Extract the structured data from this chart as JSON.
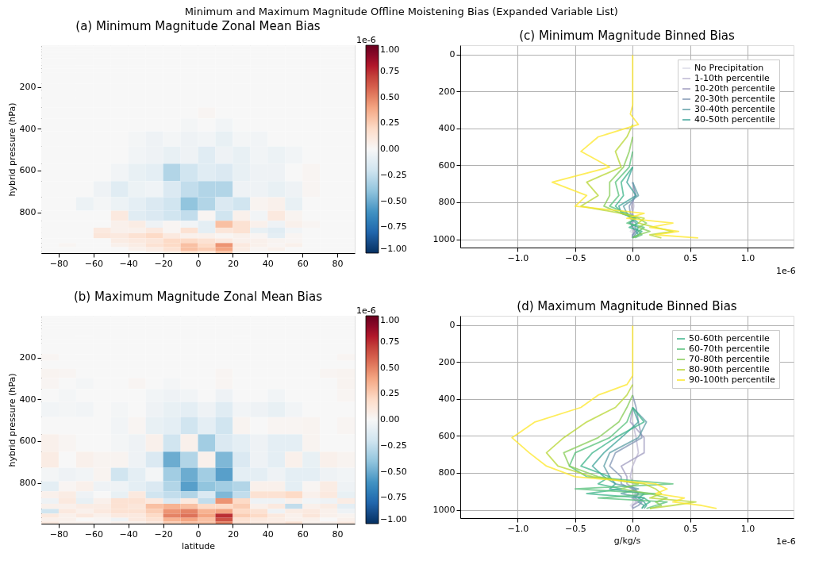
{
  "chart_data": [
    {
      "type": "other",
      "title": "Minimum and Maximum Magnitude Offline Moistening Bias (Expanded Variable List)"
    },
    {
      "type": "heatmap",
      "title": "(a) Minimum Magnitude Zonal Mean Bias",
      "ylabel": "hybrid pressure (hPa)",
      "annotations": [
        "1e-6"
      ],
      "x": [
        -85,
        -75,
        -65,
        -55,
        -45,
        -35,
        -25,
        -15,
        -5,
        5,
        15,
        25,
        35,
        45,
        55,
        65,
        75,
        85
      ],
      "y": [
        3.64,
        7.59,
        14.36,
        24.61,
        38.27,
        54.6,
        72.01,
        87.82,
        103.32,
        121.55,
        142.99,
        168.23,
        197.91,
        232.83,
        273.91,
        322.24,
        379.1,
        445.99,
        524.69,
        609.78,
        691.39,
        763.4,
        820.86,
        859.53,
        887.02,
        912.64,
        936.2,
        957.49,
        976.33,
        992.56
      ],
      "xlim": [
        -90,
        90
      ],
      "xticks": [
        {
          "value": -80,
          "label": "−80"
        },
        {
          "value": -60,
          "label": "−60"
        },
        {
          "value": -40,
          "label": "−40"
        },
        {
          "value": -20,
          "label": "−20"
        },
        0,
        20,
        40,
        60,
        80
      ],
      "ylim": [
        995,
        0
      ],
      "yticks": [
        200,
        400,
        600,
        800
      ],
      "clim": [
        -1,
        1
      ],
      "cticks": [
        {
          "value": -1,
          "label": "−1.00"
        },
        {
          "value": -0.75,
          "label": "−0.75"
        },
        {
          "value": -0.5,
          "label": "−0.50"
        },
        {
          "value": -0.25,
          "label": "−0.25"
        },
        {
          "value": 0,
          "label": "0.00"
        },
        {
          "value": 0.25,
          "label": "0.25"
        },
        {
          "value": 0.5,
          "label": "0.50"
        },
        {
          "value": 0.75,
          "label": "0.75"
        },
        {
          "value": 1,
          "label": "1.00"
        }
      ],
      "cells": [
        [
          0,
          0,
          0,
          0,
          0,
          0,
          0,
          0,
          0,
          0,
          0,
          0,
          0,
          0,
          0,
          0,
          0,
          0
        ],
        [
          0,
          0,
          0,
          0,
          0,
          0,
          0,
          0,
          0,
          0,
          0,
          0,
          0,
          0,
          0,
          0,
          0,
          0
        ],
        [
          0,
          0,
          0,
          0,
          0,
          0,
          0,
          0,
          0,
          0,
          0,
          0,
          0,
          0,
          0,
          0,
          0,
          0
        ],
        [
          0,
          0,
          0,
          0,
          0,
          0,
          0,
          0,
          0,
          0,
          0,
          0,
          0,
          0,
          0,
          0,
          0,
          0
        ],
        [
          0,
          0,
          0,
          0,
          0,
          0,
          0,
          0,
          0,
          0,
          0,
          0,
          0,
          0,
          0,
          0,
          0,
          0
        ],
        [
          0,
          0,
          0,
          0,
          0,
          0,
          0,
          0,
          0,
          0,
          0,
          0,
          0,
          0,
          0,
          0,
          0,
          0
        ],
        [
          0,
          0,
          0,
          0,
          0,
          0,
          0,
          0,
          0,
          0,
          0,
          0,
          0,
          0,
          0,
          0,
          0,
          0
        ],
        [
          0,
          0,
          0,
          0,
          0,
          0,
          0,
          0,
          0,
          0,
          0,
          0,
          0,
          0,
          0,
          0,
          0,
          0
        ],
        [
          0,
          0,
          0,
          0,
          0,
          0,
          0,
          0,
          0,
          0,
          0,
          0,
          0,
          0,
          0,
          0,
          0,
          0
        ],
        [
          0,
          0,
          0,
          0,
          0,
          0,
          0,
          0,
          0,
          0,
          0,
          0,
          0,
          0,
          0,
          0,
          0,
          0
        ],
        [
          0,
          0,
          0,
          0,
          0,
          0,
          0,
          0,
          0,
          0,
          0,
          0,
          0,
          0,
          0,
          0,
          0,
          0
        ],
        [
          0,
          0,
          0,
          0,
          0,
          0,
          0,
          0,
          0,
          0,
          0,
          0,
          0,
          0,
          0,
          0,
          0,
          0
        ],
        [
          0,
          0,
          0,
          0,
          0,
          0,
          0,
          0,
          0,
          0,
          0,
          0,
          0,
          0,
          0,
          0,
          0,
          0
        ],
        [
          0,
          0,
          0,
          0,
          0,
          0,
          0,
          0,
          0,
          0,
          0,
          0,
          0,
          0,
          0,
          0,
          0,
          0
        ],
        [
          0,
          0,
          0,
          0,
          0,
          0,
          0,
          0,
          0,
          0,
          0,
          0,
          0,
          0,
          0,
          0,
          0,
          0
        ],
        [
          0,
          0,
          0,
          0,
          0,
          0,
          0,
          0,
          0,
          0.02,
          0,
          0,
          0,
          0,
          0,
          0,
          0,
          0
        ],
        [
          0,
          0,
          0,
          0,
          0,
          0,
          0,
          0,
          -0.02,
          0,
          -0.03,
          0,
          0,
          0,
          0,
          0,
          0,
          0
        ],
        [
          0,
          0,
          0,
          0,
          0,
          -0.02,
          -0.05,
          -0.02,
          -0.05,
          -0.03,
          -0.08,
          -0.02,
          -0.03,
          0,
          0,
          0,
          0,
          0
        ],
        [
          0,
          0,
          0,
          0,
          0,
          -0.03,
          -0.05,
          -0.08,
          -0.05,
          -0.12,
          -0.05,
          -0.08,
          -0.03,
          -0.06,
          -0.03,
          0,
          0,
          0
        ],
        [
          0,
          0,
          0,
          0,
          -0.03,
          -0.08,
          -0.1,
          -0.3,
          -0.2,
          -0.12,
          -0.15,
          -0.08,
          -0.05,
          -0.05,
          0,
          0.02,
          0,
          0
        ],
        [
          0,
          0,
          0,
          -0.05,
          -0.12,
          -0.06,
          -0.04,
          -0.15,
          -0.25,
          -0.3,
          -0.3,
          -0.05,
          -0.05,
          -0.08,
          -0.05,
          0.02,
          0,
          0
        ],
        [
          0,
          0,
          -0.06,
          -0.02,
          -0.06,
          -0.1,
          -0.15,
          -0.2,
          -0.4,
          -0.3,
          -0.15,
          -0.2,
          0.03,
          0.05,
          -0.08,
          0,
          0,
          0
        ],
        [
          0,
          0,
          0,
          0,
          0.1,
          -0.12,
          -0.15,
          -0.2,
          -0.25,
          0.02,
          -0.2,
          0.05,
          -0.03,
          0.1,
          0.03,
          0,
          0,
          0
        ],
        [
          0,
          0,
          0,
          0,
          0.05,
          0.08,
          -0.05,
          0.02,
          -0.03,
          -0.1,
          0.3,
          0.15,
          0.05,
          -0.05,
          0.05,
          0.02,
          0,
          0
        ],
        [
          0,
          0,
          0,
          0.1,
          0.05,
          0.05,
          0.1,
          0.02,
          0.15,
          -0.1,
          0.12,
          0.15,
          -0.08,
          -0.12,
          -0.03,
          0,
          0,
          0
        ],
        [
          0,
          0,
          0,
          0.12,
          0.1,
          0.15,
          0.2,
          0.1,
          0.05,
          0.05,
          0.02,
          0.05,
          0.02,
          -0.1,
          0.02,
          0,
          0,
          0
        ],
        [
          0,
          0,
          0,
          0,
          0.08,
          0.1,
          0.12,
          0.2,
          0.2,
          0.15,
          0.1,
          0.05,
          0.05,
          0.03,
          0.02,
          0,
          0,
          0
        ],
        [
          0,
          0.02,
          0,
          0,
          0.05,
          0.08,
          0.15,
          0.2,
          0.3,
          0.2,
          0.45,
          0.1,
          0.05,
          0.02,
          0.05,
          0,
          0,
          0
        ],
        [
          0,
          0,
          0,
          0,
          0,
          0.05,
          0.08,
          0.15,
          0.3,
          0.25,
          0.4,
          0.08,
          0.02,
          0.05,
          0,
          0,
          0,
          0
        ],
        [
          0,
          0,
          0,
          0,
          0,
          0,
          0.05,
          0.1,
          0.2,
          0.15,
          0.3,
          0.05,
          0,
          0,
          0,
          0,
          0,
          0
        ]
      ]
    },
    {
      "type": "line",
      "orientation": "horizontal",
      "title": "(c) Minimum Magnitude Binned Bias",
      "annotations": [
        "1e-6"
      ],
      "grid": true,
      "legend": "top right",
      "x": [
        3.64,
        7.59,
        14.36,
        24.61,
        38.27,
        54.6,
        72.01,
        87.82,
        103.32,
        121.55,
        142.99,
        168.23,
        197.91,
        232.83,
        273.91,
        322.24,
        379.1,
        445.99,
        524.69,
        609.78,
        691.39,
        763.4,
        820.86,
        859.53,
        887.02,
        912.64,
        936.2,
        957.49,
        976.33,
        992.56
      ],
      "xlim": [
        -1.5,
        1.4
      ],
      "xticks": [
        {
          "value": -1,
          "label": "−1.0"
        },
        {
          "value": -0.5,
          "label": "−0.5"
        },
        {
          "value": 0,
          "label": "0.0"
        },
        {
          "value": 0.5,
          "label": "0.5"
        },
        {
          "value": 1,
          "label": "1.0"
        }
      ],
      "ylim": [
        1045,
        -50
      ],
      "yticks": [
        0,
        200,
        400,
        600,
        800,
        1000
      ],
      "series": [
        {
          "name": "No Precipitation",
          "color": "#dcdce8",
          "values": [
            null,
            null,
            null,
            null,
            null,
            null,
            null,
            null,
            null,
            null,
            null,
            null,
            null,
            null,
            null,
            null,
            null,
            null,
            null,
            null,
            null,
            null,
            null,
            null,
            null,
            -0.01,
            0.01,
            -0.02,
            0.02,
            -0.01
          ]
        },
        {
          "name": "1-10th percentile",
          "color": "#bdb8d2",
          "values": [
            null,
            null,
            null,
            null,
            null,
            null,
            null,
            null,
            null,
            null,
            null,
            null,
            null,
            null,
            null,
            null,
            null,
            null,
            null,
            null,
            null,
            0,
            0.01,
            0,
            0,
            0,
            0,
            0.01,
            0,
            0
          ]
        },
        {
          "name": "10-20th percentile",
          "color": "#a09cc0",
          "values": [
            null,
            null,
            null,
            null,
            null,
            null,
            null,
            null,
            null,
            null,
            null,
            null,
            null,
            null,
            null,
            null,
            null,
            null,
            null,
            null,
            0,
            0.02,
            -0.01,
            0,
            0.01,
            0,
            0,
            0.02,
            0,
            0
          ]
        },
        {
          "name": "20-30th percentile",
          "color": "#8196b4",
          "values": [
            null,
            null,
            null,
            null,
            null,
            null,
            null,
            null,
            null,
            null,
            null,
            null,
            null,
            null,
            null,
            null,
            null,
            null,
            null,
            null,
            0,
            0.03,
            -0.03,
            -0.02,
            0.02,
            -0.02,
            0,
            0.03,
            0,
            0
          ]
        },
        {
          "name": "30-40th percentile",
          "color": "#5e9ea6",
          "values": [
            null,
            null,
            null,
            null,
            null,
            null,
            null,
            null,
            null,
            null,
            null,
            null,
            null,
            null,
            null,
            null,
            null,
            null,
            null,
            null,
            0,
            0.05,
            -0.08,
            -0.05,
            -0.02,
            0.03,
            0.02,
            0.05,
            0.02,
            0
          ]
        },
        {
          "name": "40-50th percentile",
          "color": "#3fa49a",
          "values": [
            null,
            null,
            null,
            null,
            null,
            null,
            null,
            null,
            null,
            null,
            null,
            null,
            null,
            null,
            null,
            null,
            null,
            null,
            null,
            0,
            -0.05,
            0.03,
            -0.12,
            -0.1,
            0.02,
            -0.03,
            0.05,
            0.03,
            0.05,
            0
          ]
        },
        {
          "color": "#3cb48a",
          "values": [
            null,
            null,
            null,
            null,
            null,
            null,
            null,
            null,
            null,
            null,
            null,
            null,
            null,
            null,
            null,
            null,
            null,
            null,
            null,
            0,
            -0.1,
            -0.08,
            -0.15,
            -0.08,
            0,
            0.05,
            -0.03,
            0.08,
            0.05,
            0
          ]
        },
        {
          "color": "#55c079",
          "values": [
            null,
            null,
            null,
            null,
            null,
            null,
            null,
            null,
            null,
            null,
            null,
            null,
            null,
            null,
            null,
            null,
            null,
            null,
            0,
            -0.03,
            -0.15,
            -0.12,
            -0.2,
            -0.05,
            0.03,
            -0.05,
            0.1,
            0.05,
            0.08,
            0.02
          ]
        },
        {
          "color": "#86cc56",
          "values": [
            null,
            null,
            null,
            null,
            null,
            null,
            null,
            null,
            null,
            null,
            null,
            null,
            null,
            null,
            null,
            null,
            null,
            0,
            -0.03,
            -0.08,
            -0.2,
            -0.2,
            -0.25,
            -0.1,
            0.05,
            0.12,
            0.05,
            0.15,
            0.05,
            0
          ]
        },
        {
          "color": "#b7d531",
          "values": [
            null,
            null,
            null,
            null,
            null,
            null,
            null,
            null,
            null,
            null,
            null,
            null,
            null,
            null,
            null,
            null,
            0,
            -0.05,
            -0.15,
            -0.1,
            -0.4,
            -0.3,
            -0.45,
            -0.1,
            0.1,
            0.05,
            0.2,
            0.35,
            0.15,
            0.25
          ]
        },
        {
          "color": "#fde725",
          "values": [
            0,
            0,
            0,
            0,
            0,
            0,
            0,
            0,
            0,
            0,
            0,
            0,
            0,
            0,
            0,
            -0.02,
            0.05,
            -0.3,
            -0.45,
            -0.2,
            -0.7,
            -0.4,
            -0.5,
            0.1,
            -0.05,
            0.35,
            0.15,
            0.4,
            0.2,
            0.57
          ]
        }
      ]
    },
    {
      "type": "heatmap",
      "title": "(b) Maximum Magnitude Zonal Mean Bias",
      "xlabel": "latitude",
      "ylabel": "hybrid pressure (hPa)",
      "annotations": [
        "1e-6"
      ],
      "x": [
        -85,
        -75,
        -65,
        -55,
        -45,
        -35,
        -25,
        -15,
        -5,
        5,
        15,
        25,
        35,
        45,
        55,
        65,
        75,
        85
      ],
      "y": [
        3.64,
        7.59,
        14.36,
        24.61,
        38.27,
        54.6,
        72.01,
        87.82,
        103.32,
        121.55,
        142.99,
        168.23,
        197.91,
        232.83,
        273.91,
        322.24,
        379.1,
        445.99,
        524.69,
        609.78,
        691.39,
        763.4,
        820.86,
        859.53,
        887.02,
        912.64,
        936.2,
        957.49,
        976.33,
        992.56
      ],
      "xlim": [
        -90,
        90
      ],
      "xticks": [
        {
          "value": -80,
          "label": "−80"
        },
        {
          "value": -60,
          "label": "−60"
        },
        {
          "value": -40,
          "label": "−40"
        },
        {
          "value": -20,
          "label": "−20"
        },
        0,
        20,
        40,
        60,
        80
      ],
      "ylim": [
        995,
        0
      ],
      "yticks": [
        200,
        400,
        600,
        800
      ],
      "clim": [
        -1,
        1
      ],
      "cticks": [
        {
          "value": -1,
          "label": "−1.00"
        },
        {
          "value": -0.75,
          "label": "−0.75"
        },
        {
          "value": -0.5,
          "label": "−0.50"
        },
        {
          "value": -0.25,
          "label": "−0.25"
        },
        {
          "value": 0,
          "label": "0.00"
        },
        {
          "value": 0.25,
          "label": "0.25"
        },
        {
          "value": 0.5,
          "label": "0.50"
        },
        {
          "value": 0.75,
          "label": "0.75"
        },
        {
          "value": 1,
          "label": "1.00"
        }
      ],
      "cells": [
        [
          0,
          0,
          0,
          0,
          0,
          0,
          0,
          0,
          0,
          0,
          0,
          0,
          0,
          0,
          0,
          0,
          0,
          0
        ],
        [
          0,
          0,
          0,
          0,
          0,
          0,
          0,
          0,
          0,
          0,
          0,
          0,
          0,
          0,
          0,
          0,
          0,
          0
        ],
        [
          0,
          0,
          0,
          0,
          0,
          0,
          0,
          0,
          0,
          0,
          0,
          0,
          0,
          0,
          0,
          0,
          0,
          0
        ],
        [
          0,
          0,
          0,
          0,
          0,
          0,
          0,
          0,
          0,
          0,
          0,
          0,
          0,
          0,
          0,
          0,
          0,
          0
        ],
        [
          0,
          0,
          0,
          0,
          0,
          0,
          0,
          0,
          0,
          0,
          0,
          0,
          0,
          0,
          0,
          0,
          0,
          0
        ],
        [
          0,
          0,
          0,
          0,
          0,
          0,
          0,
          0,
          0,
          0,
          0,
          0,
          0,
          0,
          0,
          0,
          0,
          0
        ],
        [
          0,
          0,
          0,
          0,
          0,
          0,
          0,
          0,
          0,
          0,
          0,
          0,
          0,
          0,
          0,
          0,
          0,
          0
        ],
        [
          0,
          0,
          0,
          0,
          0,
          0,
          0,
          0,
          0,
          0,
          0,
          0,
          0,
          0,
          0,
          0,
          0,
          0
        ],
        [
          0,
          0,
          0,
          0,
          0,
          0,
          0,
          0,
          0,
          0,
          0,
          0,
          0,
          0,
          0,
          0,
          0,
          0
        ],
        [
          0,
          0,
          0,
          0,
          0,
          0,
          0,
          0,
          0,
          0,
          0,
          0,
          0,
          0,
          0,
          0,
          0,
          0
        ],
        [
          0,
          0,
          0,
          0,
          0,
          0,
          0,
          0,
          0,
          0,
          0,
          0,
          0,
          0,
          0,
          0,
          0,
          0
        ],
        [
          0,
          0,
          0,
          0,
          0,
          0,
          0,
          0,
          0,
          0,
          0,
          0,
          0,
          0,
          0,
          0,
          0,
          0
        ],
        [
          0.02,
          0,
          0,
          0,
          0,
          0,
          0,
          0,
          0,
          0,
          0,
          0,
          0,
          0,
          0,
          0,
          0,
          0.02
        ],
        [
          0,
          0,
          0,
          0,
          0,
          0,
          0,
          0,
          0,
          0,
          0,
          0,
          0,
          0,
          0,
          0,
          0,
          0
        ],
        [
          0.03,
          0.02,
          0,
          0,
          0,
          0,
          0,
          0,
          0,
          0,
          0.02,
          0,
          0,
          0,
          0,
          0,
          0.02,
          0.03
        ],
        [
          0.02,
          0,
          -0.02,
          0,
          0,
          0.02,
          0,
          -0.02,
          0,
          0,
          0.02,
          0,
          0,
          0,
          0,
          0,
          0,
          0.03
        ],
        [
          0,
          -0.02,
          0,
          0,
          0,
          0,
          -0.03,
          -0.05,
          -0.03,
          0,
          -0.05,
          0,
          0,
          -0.03,
          0,
          0,
          0,
          0.02
        ],
        [
          -0.03,
          -0.02,
          -0.03,
          0,
          -0.02,
          0,
          -0.05,
          -0.08,
          -0.1,
          -0.05,
          -0.12,
          -0.03,
          -0.05,
          -0.08,
          -0.03,
          0,
          0,
          0
        ],
        [
          0,
          0,
          0,
          0,
          -0.03,
          0.02,
          -0.08,
          -0.1,
          -0.2,
          -0.1,
          -0.2,
          0.03,
          0,
          0.02,
          0.02,
          0.03,
          0,
          0.02
        ],
        [
          0.05,
          0.02,
          0,
          0,
          -0.02,
          -0.05,
          0.05,
          -0.2,
          0.05,
          -0.35,
          -0.15,
          -0.1,
          -0.05,
          -0.1,
          -0.1,
          0.03,
          0,
          0
        ],
        [
          0.08,
          0,
          0.05,
          0.03,
          0.03,
          -0.05,
          -0.15,
          -0.5,
          -0.3,
          0.05,
          -0.45,
          -0.15,
          -0.05,
          -0.1,
          0.05,
          -0.08,
          0.05,
          0.03
        ],
        [
          -0.02,
          -0.05,
          -0.03,
          0.03,
          -0.2,
          -0.1,
          -0.02,
          -0.35,
          -0.5,
          -0.35,
          -0.55,
          -0.1,
          -0.1,
          -0.05,
          -0.1,
          -0.1,
          -0.05,
          -0.03
        ],
        [
          -0.1,
          0.02,
          0.05,
          -0.05,
          -0.05,
          -0.1,
          -0.15,
          -0.3,
          -0.55,
          -0.4,
          -0.35,
          -0.3,
          0.05,
          0.05,
          -0.1,
          0.02,
          0.08,
          -0.05
        ],
        [
          0.05,
          0.08,
          -0.05,
          0,
          -0.08,
          0.1,
          -0.2,
          -0.25,
          -0.3,
          -0.15,
          -0.45,
          -0.25,
          0.15,
          0.15,
          0.2,
          0.05,
          0.1,
          -0.08
        ],
        [
          -0.05,
          0.1,
          -0.08,
          0.05,
          0.15,
          0.15,
          0.1,
          -0.15,
          0.1,
          -0.25,
          0.45,
          0.2,
          -0.05,
          -0.05,
          0.05,
          -0.03,
          -0.05,
          0.08
        ],
        [
          0.05,
          0.05,
          0.08,
          0.08,
          0.15,
          0.12,
          0.3,
          0.35,
          0.3,
          0.2,
          0.2,
          0.25,
          0.05,
          0.1,
          -0.25,
          0.05,
          0.08,
          -0.1
        ],
        [
          -0.2,
          0.1,
          0.05,
          0.1,
          0.15,
          0.15,
          0.25,
          0.45,
          0.5,
          0.35,
          0.4,
          0.2,
          0.15,
          -0.05,
          0.08,
          0.1,
          0.05,
          -0.05
        ],
        [
          0.1,
          0.05,
          0.1,
          0.05,
          0.1,
          0.1,
          0.2,
          0.5,
          0.55,
          0.4,
          0.75,
          0.25,
          0.2,
          0.1,
          0.05,
          0.12,
          0.05,
          0.03
        ],
        [
          0.05,
          0.05,
          0,
          0.02,
          -0.05,
          0.1,
          0.15,
          0.35,
          0.4,
          0.3,
          0.65,
          0.15,
          0.1,
          0.08,
          0.05,
          0.05,
          0,
          0.05
        ],
        [
          0.1,
          0.05,
          0.05,
          0.02,
          0.05,
          0.05,
          0.1,
          0.25,
          0.3,
          0.3,
          0.5,
          0.15,
          0.1,
          0.1,
          0.15,
          0.05,
          0.05,
          0.1
        ]
      ]
    },
    {
      "type": "line",
      "orientation": "horizontal",
      "title": "(d) Maximum Magnitude Binned Bias",
      "xlabel": "g/kg/s",
      "annotations": [
        "1e-6"
      ],
      "grid": true,
      "legend": "top right",
      "x": [
        3.64,
        7.59,
        14.36,
        24.61,
        38.27,
        54.6,
        72.01,
        87.82,
        103.32,
        121.55,
        142.99,
        168.23,
        197.91,
        232.83,
        273.91,
        322.24,
        379.1,
        445.99,
        524.69,
        609.78,
        691.39,
        763.4,
        820.86,
        859.53,
        887.02,
        912.64,
        936.2,
        957.49,
        976.33,
        992.56
      ],
      "xlim": [
        -1.5,
        1.4
      ],
      "xticks": [
        {
          "value": -1,
          "label": "−1.0"
        },
        {
          "value": -0.5,
          "label": "−0.5"
        },
        {
          "value": 0,
          "label": "0.0"
        },
        {
          "value": 0.5,
          "label": "0.5"
        },
        {
          "value": 1,
          "label": "1.0"
        }
      ],
      "ylim": [
        1045,
        -50
      ],
      "yticks": [
        0,
        200,
        400,
        600,
        800,
        1000
      ],
      "series": [
        {
          "color": "#dcdce8",
          "values": [
            null,
            null,
            null,
            null,
            null,
            null,
            null,
            null,
            null,
            null,
            null,
            null,
            null,
            null,
            null,
            null,
            null,
            null,
            null,
            null,
            null,
            0,
            -0.02,
            0.01,
            -0.01,
            0.02,
            -0.01,
            0.01,
            -0.02,
            0.01
          ]
        },
        {
          "color": "#bdb8d2",
          "values": [
            null,
            null,
            null,
            null,
            null,
            null,
            null,
            null,
            null,
            null,
            null,
            null,
            null,
            null,
            null,
            null,
            null,
            null,
            0,
            0.03,
            0.05,
            0,
            -0.02,
            0,
            0,
            0.03,
            0,
            0.03,
            0,
            0
          ]
        },
        {
          "color": "#a09cc0",
          "values": [
            null,
            null,
            null,
            null,
            null,
            null,
            null,
            null,
            null,
            null,
            null,
            null,
            null,
            null,
            null,
            null,
            null,
            0,
            -0.02,
            0.1,
            0.1,
            -0.1,
            -0.05,
            -0.05,
            0.02,
            0.05,
            0,
            0.05,
            0,
            0
          ]
        },
        {
          "color": "#8196b4",
          "values": [
            null,
            null,
            null,
            null,
            null,
            null,
            null,
            null,
            null,
            null,
            null,
            null,
            null,
            null,
            null,
            null,
            0,
            0.03,
            0.05,
            0.08,
            -0.15,
            -0.2,
            -0.1,
            -0.1,
            0,
            0.05,
            0.02,
            0.08,
            0.05,
            0
          ]
        },
        {
          "color": "#5e9ea6",
          "values": [
            null,
            null,
            null,
            null,
            null,
            null,
            null,
            null,
            null,
            null,
            null,
            null,
            null,
            null,
            null,
            null,
            null,
            0,
            0.12,
            0.05,
            -0.2,
            -0.25,
            -0.2,
            -0.15,
            0.05,
            -0.1,
            0.1,
            0.05,
            0.1,
            0.08
          ]
        },
        {
          "color": "#3fa49a",
          "values": [
            null,
            null,
            null,
            null,
            null,
            null,
            null,
            null,
            null,
            null,
            null,
            null,
            null,
            null,
            null,
            null,
            null,
            0,
            0.05,
            -0.1,
            -0.25,
            -0.35,
            -0.25,
            -0.15,
            -0.2,
            0.1,
            0.05,
            0.1,
            0.12,
            0.1
          ]
        },
        {
          "name": "50-60th percentile",
          "color": "#3cb48a",
          "values": [
            null,
            null,
            null,
            null,
            null,
            null,
            null,
            null,
            null,
            null,
            null,
            null,
            null,
            null,
            null,
            null,
            null,
            0,
            0.1,
            -0.15,
            -0.35,
            -0.45,
            -0.2,
            -0.3,
            -0.1,
            -0.4,
            0.1,
            0.15,
            0.1,
            0.08
          ]
        },
        {
          "name": "60-70th percentile",
          "color": "#55c079",
          "values": [
            null,
            null,
            null,
            null,
            null,
            null,
            null,
            null,
            null,
            null,
            null,
            null,
            null,
            null,
            null,
            null,
            null,
            0,
            -0.05,
            -0.2,
            -0.5,
            -0.55,
            -0.4,
            0.35,
            -0.5,
            0.2,
            -0.3,
            0.3,
            0.2,
            0.12
          ]
        },
        {
          "name": "70-80th percentile",
          "color": "#86cc56",
          "values": [
            null,
            null,
            null,
            null,
            null,
            null,
            null,
            null,
            null,
            null,
            null,
            null,
            null,
            null,
            null,
            null,
            0,
            -0.05,
            -0.12,
            -0.3,
            -0.6,
            -0.55,
            -0.3,
            0.05,
            -0.1,
            0.15,
            0.3,
            0.2,
            0.25,
            0.15
          ]
        },
        {
          "name": "80-90th percentile",
          "color": "#b7d531",
          "values": [
            null,
            null,
            null,
            null,
            null,
            null,
            null,
            null,
            null,
            null,
            null,
            null,
            null,
            null,
            null,
            0,
            -0.05,
            -0.15,
            -0.4,
            -0.6,
            -0.75,
            -0.65,
            -0.35,
            0.1,
            0.2,
            0.25,
            0.15,
            0.55,
            0.35,
            0.15
          ]
        },
        {
          "name": "90-100th percentile",
          "color": "#fde725",
          "values": [
            0,
            0,
            0,
            0,
            0,
            0,
            0,
            0,
            0,
            0,
            0,
            0,
            0,
            0,
            0,
            -0.05,
            -0.3,
            -0.45,
            -0.85,
            -1.05,
            -0.9,
            -0.75,
            -0.5,
            0.2,
            0.3,
            0.2,
            0.45,
            0.35,
            0.6,
            0.73
          ]
        }
      ]
    }
  ]
}
